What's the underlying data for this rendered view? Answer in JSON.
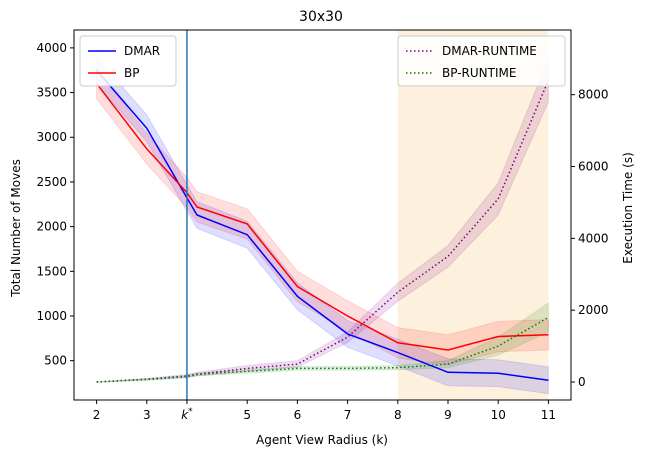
{
  "chart_data": {
    "type": "line",
    "title": "30x30",
    "xlabel": "Agent View Radius (k)",
    "ylabel_left": "Total Number of Moves",
    "ylabel_right": "Execution Time (s)",
    "x_ticks": [
      "2",
      "3",
      "k*",
      "5",
      "6",
      "7",
      "8",
      "9",
      "10",
      "11"
    ],
    "x_tick_values": [
      2,
      3,
      3.8,
      5,
      6,
      7,
      8,
      9,
      10,
      11
    ],
    "xlim": [
      1.55,
      11.45
    ],
    "ylim_left": [
      60,
      4200
    ],
    "ylim_right": [
      -500,
      9800
    ],
    "y_ticks_left": [
      500,
      1000,
      1500,
      2000,
      2500,
      3000,
      3500,
      4000
    ],
    "y_ticks_right": [
      0,
      2000,
      4000,
      6000,
      8000
    ],
    "vertical_line": {
      "x": 3.8,
      "label": "k*",
      "color": "#1f77b4"
    },
    "shaded_region": {
      "x_start": 8,
      "x_end": 11,
      "color": "#fdf0dc"
    },
    "x": [
      2,
      3,
      3.8,
      4,
      5,
      6,
      7,
      8,
      9,
      10,
      11
    ],
    "series": [
      {
        "name": "DMAR",
        "axis": "left",
        "color": "#0000ff",
        "style": "solid",
        "values": [
          3750,
          3100,
          2320,
          2130,
          1910,
          1220,
          800,
          590,
          370,
          360,
          280
        ],
        "band": 150
      },
      {
        "name": "BP",
        "axis": "left",
        "color": "#ff0000",
        "style": "solid",
        "values": [
          3600,
          2870,
          2380,
          2220,
          2030,
          1330,
          1000,
          700,
          620,
          770,
          790
        ],
        "band": 170
      },
      {
        "name": "DMAR-RUNTIME",
        "axis": "right",
        "color": "#800080",
        "style": "dotted",
        "values": [
          0,
          80,
          170,
          220,
          380,
          500,
          1250,
          2500,
          3500,
          5100,
          8400
        ],
        "band": [
          0,
          20,
          40,
          50,
          80,
          90,
          150,
          250,
          300,
          450,
          600
        ]
      },
      {
        "name": "BP-RUNTIME",
        "axis": "right",
        "color": "#008000",
        "style": "dotted",
        "values": [
          0,
          70,
          150,
          210,
          300,
          380,
          380,
          400,
          500,
          1000,
          1800
        ],
        "band": [
          0,
          20,
          30,
          40,
          50,
          50,
          50,
          60,
          100,
          250,
          400
        ]
      }
    ],
    "legend_left": [
      "DMAR",
      "BP"
    ],
    "legend_right": [
      "DMAR-RUNTIME",
      "BP-RUNTIME"
    ]
  }
}
